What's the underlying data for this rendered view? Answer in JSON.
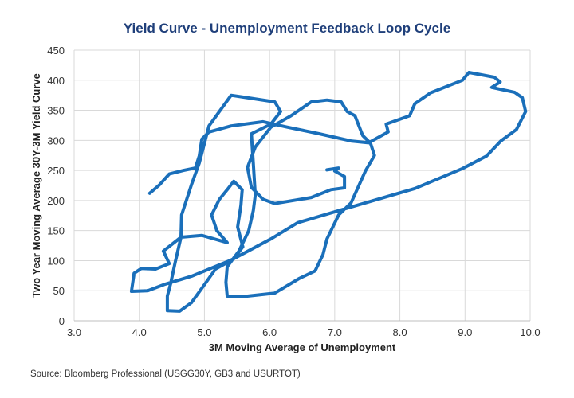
{
  "chart_data": {
    "type": "line",
    "title": "Yield Curve - Unemployment Feedback Loop Cycle",
    "xlabel": "3M Moving Average of Unemployment",
    "ylabel": "Two Year Moving Average 30Y-3M Yield Curve",
    "xlim": [
      3.0,
      10.0
    ],
    "ylim": [
      0,
      450
    ],
    "xticks": [
      "3.0",
      "4.0",
      "5.0",
      "6.0",
      "7.0",
      "8.0",
      "9.0",
      "10.0"
    ],
    "yticks": [
      "0",
      "50",
      "100",
      "150",
      "200",
      "250",
      "300",
      "350",
      "400",
      "450"
    ],
    "grid": true,
    "legend": "none",
    "color": "#1a6fba",
    "series": [
      {
        "x": [
          4.16,
          4.31,
          4.46,
          4.68,
          4.86,
          4.92,
          4.96,
          5.07,
          5.41,
          5.9,
          6.27,
          6.76,
          7.25,
          7.52,
          7.82,
          7.79,
          8.15,
          8.23,
          8.47,
          8.96,
          9.06,
          9.45,
          9.54,
          9.41,
          9.76,
          9.88,
          9.93,
          9.79,
          9.55,
          9.33,
          8.96,
          8.23,
          7.12,
          6.43,
          6.02,
          5.41,
          4.8,
          4.4,
          4.13,
          3.88,
          3.92,
          4.03,
          4.25,
          4.46,
          4.37,
          4.64,
          4.96,
          5.35,
          5.19,
          5.11,
          5.23,
          5.35,
          5.45,
          5.58,
          5.56,
          5.51,
          5.59,
          5.45,
          5.17,
          4.98,
          4.8,
          4.62,
          4.43,
          4.43,
          4.48,
          4.55,
          4.64,
          4.65,
          4.8,
          4.92,
          5.07,
          5.23,
          5.41,
          5.59,
          6.08,
          6.17,
          6.02,
          5.72,
          5.75,
          5.78,
          5.75,
          5.68,
          5.53,
          5.35,
          5.33,
          5.35,
          5.66,
          6.08,
          6.45,
          6.7,
          6.82,
          6.88,
          7.06,
          7.25,
          7.47,
          7.61,
          7.55,
          7.43,
          7.31,
          7.19,
          7.1,
          6.88,
          6.64,
          6.33,
          6.02,
          5.78,
          5.66,
          5.72,
          5.9,
          6.08,
          6.64,
          6.94,
          7.15,
          7.15,
          7.0,
          7.06,
          6.88
        ],
        "y": [
          212,
          226,
          244,
          250,
          254,
          274,
          302,
          314,
          324,
          331,
          322,
          311,
          299,
          296,
          314,
          327,
          341,
          361,
          379,
          400,
          413,
          405,
          397,
          388,
          380,
          371,
          348,
          318,
          299,
          274,
          253,
          220,
          185,
          163,
          136,
          101,
          74,
          61,
          50,
          49,
          79,
          87,
          86,
          95,
          116,
          139,
          142,
          130,
          150,
          176,
          202,
          218,
          232,
          218,
          192,
          156,
          123,
          103,
          86,
          57,
          30,
          16,
          17,
          41,
          61,
          97,
          139,
          176,
          226,
          262,
          324,
          348,
          375,
          372,
          364,
          348,
          327,
          311,
          262,
          209,
          183,
          150,
          116,
          90,
          64,
          41,
          41,
          46,
          70,
          83,
          110,
          136,
          176,
          196,
          249,
          275,
          295,
          308,
          341,
          348,
          364,
          367,
          364,
          341,
          322,
          289,
          255,
          222,
          202,
          195,
          205,
          218,
          221,
          240,
          249,
          254,
          251
        ]
      }
    ]
  },
  "source": "Source: Bloomberg Professional (USGG30Y, GB3 and USURTOT)"
}
